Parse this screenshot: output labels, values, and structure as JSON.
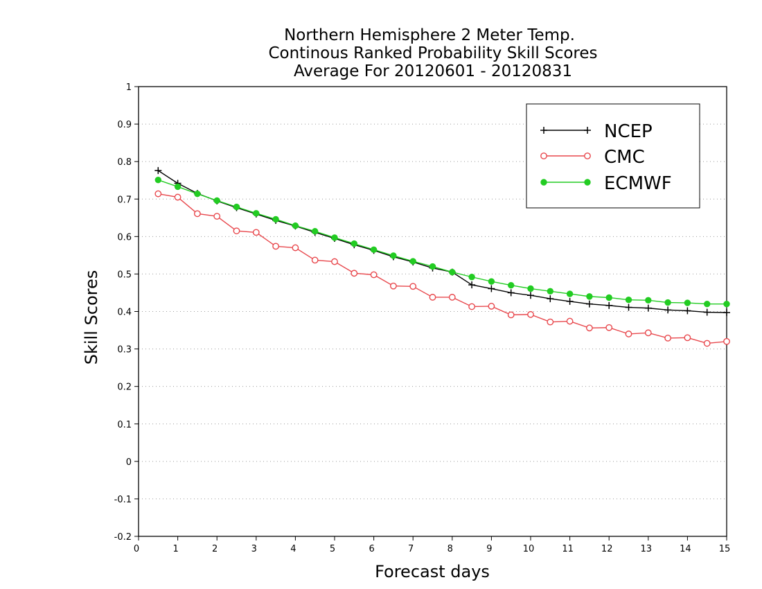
{
  "chart_data": {
    "type": "line",
    "title_lines": [
      "Northern Hemisphere 2 Meter Temp.",
      "Continous Ranked Probability Skill Scores",
      "Average For 20120601 - 20120831"
    ],
    "xlabel": "Forecast days",
    "ylabel": "Skill Scores",
    "xlim": [
      0,
      15
    ],
    "ylim": [
      -0.2,
      1
    ],
    "x_ticks": [
      0,
      1,
      2,
      3,
      4,
      5,
      6,
      7,
      8,
      9,
      10,
      11,
      12,
      13,
      14,
      15
    ],
    "y_ticks": [
      -0.2,
      -0.1,
      0,
      0.1,
      0.2,
      0.3,
      0.4,
      0.5,
      0.6,
      0.7,
      0.8,
      0.9,
      1
    ],
    "y_tick_labels": [
      "-0.2",
      "-0.1",
      "0",
      "0.1",
      "0.2",
      "0.3",
      "0.4",
      "0.5",
      "0.6",
      "0.7",
      "0.8",
      "0.9",
      "1"
    ],
    "grid": "horizontal-dotted",
    "legend_position": "top-right",
    "x": [
      0.5,
      1,
      1.5,
      2,
      2.5,
      3,
      3.5,
      4,
      4.5,
      5,
      5.5,
      6,
      6.5,
      7,
      7.5,
      8,
      8.5,
      9,
      9.5,
      10,
      10.5,
      11,
      11.5,
      12,
      12.5,
      13,
      13.5,
      14,
      14.5,
      15
    ],
    "series": [
      {
        "name": "NCEP",
        "color": "#000000",
        "marker": "plus",
        "values": [
          0.776,
          0.742,
          0.715,
          0.695,
          0.677,
          0.66,
          0.643,
          0.628,
          0.611,
          0.595,
          0.578,
          0.563,
          0.546,
          0.532,
          0.516,
          0.505,
          0.471,
          0.461,
          0.45,
          0.443,
          0.434,
          0.427,
          0.42,
          0.416,
          0.411,
          0.409,
          0.404,
          0.402,
          0.398,
          0.397
        ]
      },
      {
        "name": "CMC",
        "color": "#e8474c",
        "marker": "open-circle",
        "values": [
          0.714,
          0.705,
          0.661,
          0.654,
          0.615,
          0.611,
          0.574,
          0.57,
          0.537,
          0.533,
          0.502,
          0.498,
          0.468,
          0.467,
          0.438,
          0.438,
          0.413,
          0.414,
          0.391,
          0.392,
          0.372,
          0.374,
          0.356,
          0.357,
          0.34,
          0.343,
          0.329,
          0.33,
          0.315,
          0.32
        ]
      },
      {
        "name": "ECMWF",
        "color": "#22cc22",
        "marker": "filled-circle",
        "values": [
          0.751,
          0.733,
          0.714,
          0.696,
          0.679,
          0.662,
          0.646,
          0.629,
          0.614,
          0.597,
          0.581,
          0.565,
          0.549,
          0.534,
          0.52,
          0.505,
          0.492,
          0.48,
          0.47,
          0.461,
          0.454,
          0.447,
          0.44,
          0.437,
          0.431,
          0.43,
          0.424,
          0.423,
          0.42,
          0.42
        ]
      }
    ]
  }
}
